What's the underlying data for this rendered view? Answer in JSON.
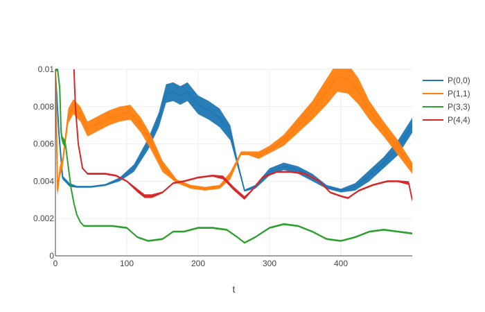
{
  "chart_data": {
    "type": "line",
    "title": "",
    "xlabel": "t",
    "ylabel": "",
    "xlim": [
      0,
      500
    ],
    "ylim": [
      0,
      0.01
    ],
    "x_ticks": [
      0,
      100,
      200,
      300,
      400
    ],
    "x_tick_labels": [
      "0",
      "100",
      "200",
      "300",
      "400"
    ],
    "y_ticks": [
      0,
      0.002,
      0.004,
      0.006,
      0.008,
      0.01
    ],
    "y_tick_labels": [
      "0",
      "0.002",
      "0.004",
      "0.006",
      "0.008",
      "0.01"
    ],
    "grid": true,
    "legend_position": "top-right",
    "series": [
      {
        "name": "P(0,0)",
        "color": "#1f77b4",
        "x": [
          0,
          5,
          10,
          20,
          30,
          50,
          70,
          90,
          110,
          130,
          145,
          155,
          165,
          175,
          185,
          200,
          215,
          230,
          245,
          255,
          265,
          280,
          300,
          320,
          340,
          360,
          380,
          400,
          420,
          440,
          460,
          480,
          500
        ],
        "y": [
          0.0098,
          0.0065,
          0.0042,
          0.0038,
          0.0037,
          0.0037,
          0.0038,
          0.0041,
          0.0047,
          0.006,
          0.0073,
          0.0087,
          0.0088,
          0.0086,
          0.0088,
          0.0081,
          0.0078,
          0.0074,
          0.0066,
          0.005,
          0.0035,
          0.0037,
          0.0045,
          0.0048,
          0.0046,
          0.0042,
          0.0037,
          0.0035,
          0.0037,
          0.0043,
          0.005,
          0.0058,
          0.007
        ],
        "band": [
          0.0002,
          0.0002,
          0.0001,
          0.0001,
          5e-05,
          5e-05,
          5e-05,
          0.0001,
          0.0002,
          0.0003,
          0.0004,
          0.0005,
          0.0005,
          0.0005,
          0.0005,
          0.0005,
          0.0005,
          0.0005,
          0.0004,
          0.0002,
          5e-05,
          0.0001,
          0.0002,
          0.0002,
          0.0002,
          0.0002,
          0.0001,
          0.0001,
          0.0002,
          0.0003,
          0.0003,
          0.0004,
          0.0004
        ]
      },
      {
        "name": "P(1,1)",
        "color": "#ff7f0e",
        "x": [
          0,
          3,
          6,
          10,
          18,
          25,
          35,
          45,
          60,
          75,
          90,
          105,
          120,
          135,
          150,
          170,
          190,
          210,
          230,
          245,
          260,
          270,
          285,
          300,
          320,
          340,
          360,
          380,
          395,
          410,
          425,
          440,
          460,
          480,
          500
        ],
        "y": [
          0.01,
          0.0035,
          0.0045,
          0.005,
          0.0075,
          0.008,
          0.0076,
          0.0068,
          0.0071,
          0.0074,
          0.0076,
          0.0077,
          0.007,
          0.006,
          0.0048,
          0.004,
          0.0037,
          0.0036,
          0.0037,
          0.0043,
          0.0055,
          0.0055,
          0.0054,
          0.0057,
          0.0062,
          0.007,
          0.0078,
          0.0088,
          0.0096,
          0.0095,
          0.0088,
          0.0078,
          0.0068,
          0.0058,
          0.0047
        ],
        "band": [
          0.0001,
          0.0003,
          0.0003,
          0.0003,
          0.0004,
          0.0004,
          0.0004,
          0.0004,
          0.0004,
          0.0004,
          0.0004,
          0.0004,
          0.0004,
          0.0004,
          0.0003,
          0.0001,
          0.0001,
          0.0001,
          0.0001,
          0.0002,
          0.0001,
          0.0001,
          0.0002,
          0.0002,
          0.0003,
          0.0004,
          0.0005,
          0.0007,
          0.0008,
          0.0008,
          0.0007,
          0.0005,
          0.0004,
          0.0004,
          0.0003
        ]
      },
      {
        "name": "P(3,3)",
        "color": "#2ca02c",
        "x": [
          0,
          3,
          6,
          8,
          10,
          14,
          18,
          22,
          26,
          30,
          35,
          40,
          50,
          60,
          80,
          100,
          115,
          130,
          150,
          165,
          180,
          200,
          220,
          240,
          255,
          265,
          280,
          300,
          320,
          340,
          360,
          380,
          400,
          420,
          440,
          460,
          480,
          500
        ],
        "y": [
          0.01,
          0.01,
          0.009,
          0.0066,
          0.0062,
          0.006,
          0.0048,
          0.0036,
          0.0028,
          0.0022,
          0.0018,
          0.0016,
          0.0016,
          0.0016,
          0.0016,
          0.0015,
          0.001,
          0.0008,
          0.0009,
          0.0013,
          0.0013,
          0.0015,
          0.0015,
          0.0014,
          0.001,
          0.0007,
          0.001,
          0.0015,
          0.0017,
          0.0016,
          0.0013,
          0.0009,
          0.0008,
          0.001,
          0.0013,
          0.0014,
          0.0013,
          0.0012
        ],
        "band": [
          0.0001,
          0.0001,
          0.0002,
          0.0003,
          0.0002,
          0.0002,
          0.0001,
          0.0001,
          5e-05,
          5e-05,
          5e-05,
          5e-05,
          5e-05,
          5e-05,
          5e-05,
          5e-05,
          5e-05,
          5e-05,
          5e-05,
          5e-05,
          5e-05,
          5e-05,
          5e-05,
          5e-05,
          5e-05,
          5e-05,
          5e-05,
          5e-05,
          5e-05,
          5e-05,
          5e-05,
          5e-05,
          5e-05,
          5e-05,
          5e-05,
          5e-05,
          5e-05,
          5e-05
        ]
      },
      {
        "name": "P(4,4)",
        "color": "#d62728",
        "x": [
          26,
          28,
          32,
          38,
          45,
          55,
          70,
          85,
          100,
          115,
          125,
          135,
          150,
          165,
          180,
          200,
          220,
          235,
          250,
          265,
          275,
          290,
          310,
          330,
          350,
          370,
          385,
          400,
          410,
          425,
          445,
          465,
          480,
          495,
          500
        ],
        "y": [
          0.01,
          0.008,
          0.006,
          0.0047,
          0.0044,
          0.0044,
          0.0044,
          0.0043,
          0.004,
          0.0035,
          0.0032,
          0.0032,
          0.0034,
          0.0039,
          0.004,
          0.0042,
          0.0043,
          0.0042,
          0.0036,
          0.0031,
          0.0035,
          0.0042,
          0.0045,
          0.0045,
          0.0044,
          0.004,
          0.0034,
          0.0032,
          0.0031,
          0.0035,
          0.0038,
          0.004,
          0.004,
          0.0039,
          0.003
        ],
        "band": [
          0.0001,
          0.0001,
          0.0001,
          5e-05,
          5e-05,
          5e-05,
          5e-05,
          5e-05,
          5e-05,
          0.0001,
          0.0001,
          0.0001,
          5e-05,
          5e-05,
          5e-05,
          5e-05,
          5e-05,
          0.0001,
          0.0001,
          0.0001,
          5e-05,
          5e-05,
          5e-05,
          5e-05,
          5e-05,
          5e-05,
          5e-05,
          5e-05,
          5e-05,
          5e-05,
          5e-05,
          5e-05,
          5e-05,
          0.0001,
          0.0001
        ]
      }
    ]
  }
}
